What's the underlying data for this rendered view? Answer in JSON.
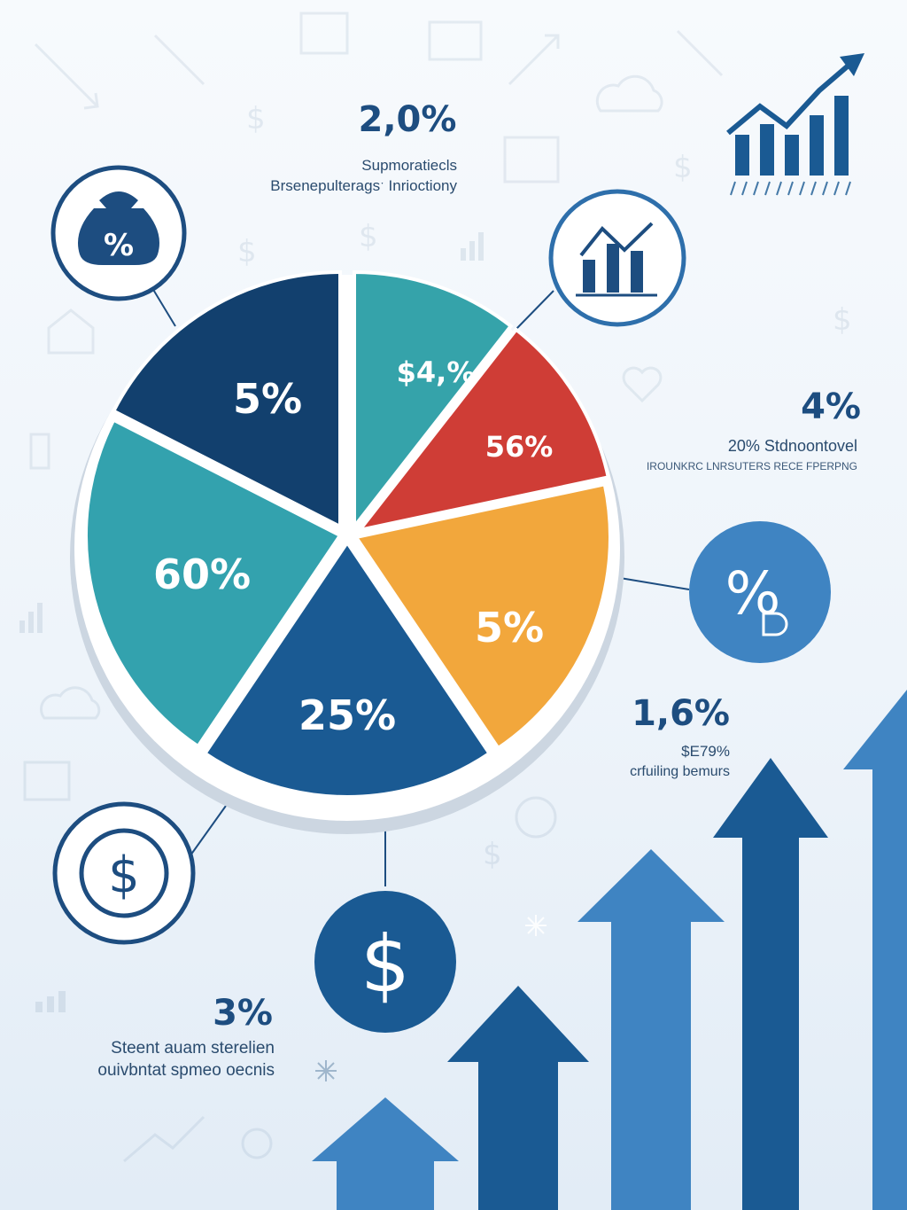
{
  "chart_data": {
    "type": "pie",
    "title": "",
    "slices": [
      {
        "label": "5%",
        "color": "#12406e"
      },
      {
        "label": "$4,%",
        "color": "#35a3aa"
      },
      {
        "label": "56%",
        "color": "#cf3d36"
      },
      {
        "label": "5%",
        "color": "#f2a73c"
      },
      {
        "label": "25%",
        "color": "#1a5a93"
      },
      {
        "label": "60%",
        "color": "#33a2ae"
      }
    ]
  },
  "callouts": {
    "top": {
      "value": "2,0%",
      "line1": "Supmoratiecls",
      "line2": "Brsenepulteragsˑ Inrioctiony"
    },
    "right_mid": {
      "value": "4%",
      "line1": "20%  Stdnoontovel",
      "line2": "IROUNKRC LNRSUTERS RECE FPERPNG"
    },
    "right_low": {
      "value": "1,6%",
      "line1": "$E79%",
      "line2": "crfuiling bemurs"
    },
    "bottom_left": {
      "value": "3%",
      "line1": "Steent auam sterelien",
      "line2": "ouivbntat spmeo oecnis"
    }
  },
  "icons": {
    "money_bag": "money-bag-percent-icon",
    "growth_chart": "growth-chart-icon",
    "percent_badge": "percent-badge-icon",
    "dollar_coin": "dollar-coin-icon",
    "dollar_circle": "dollar-circle-icon",
    "trend_logo": "trend-logo-icon"
  },
  "colors": {
    "navy": "#12406e",
    "blue": "#1a5a93",
    "teal": "#33a2ae",
    "red": "#cf3d36",
    "orange": "#f2a73c",
    "light_blue": "#3f84c2"
  }
}
